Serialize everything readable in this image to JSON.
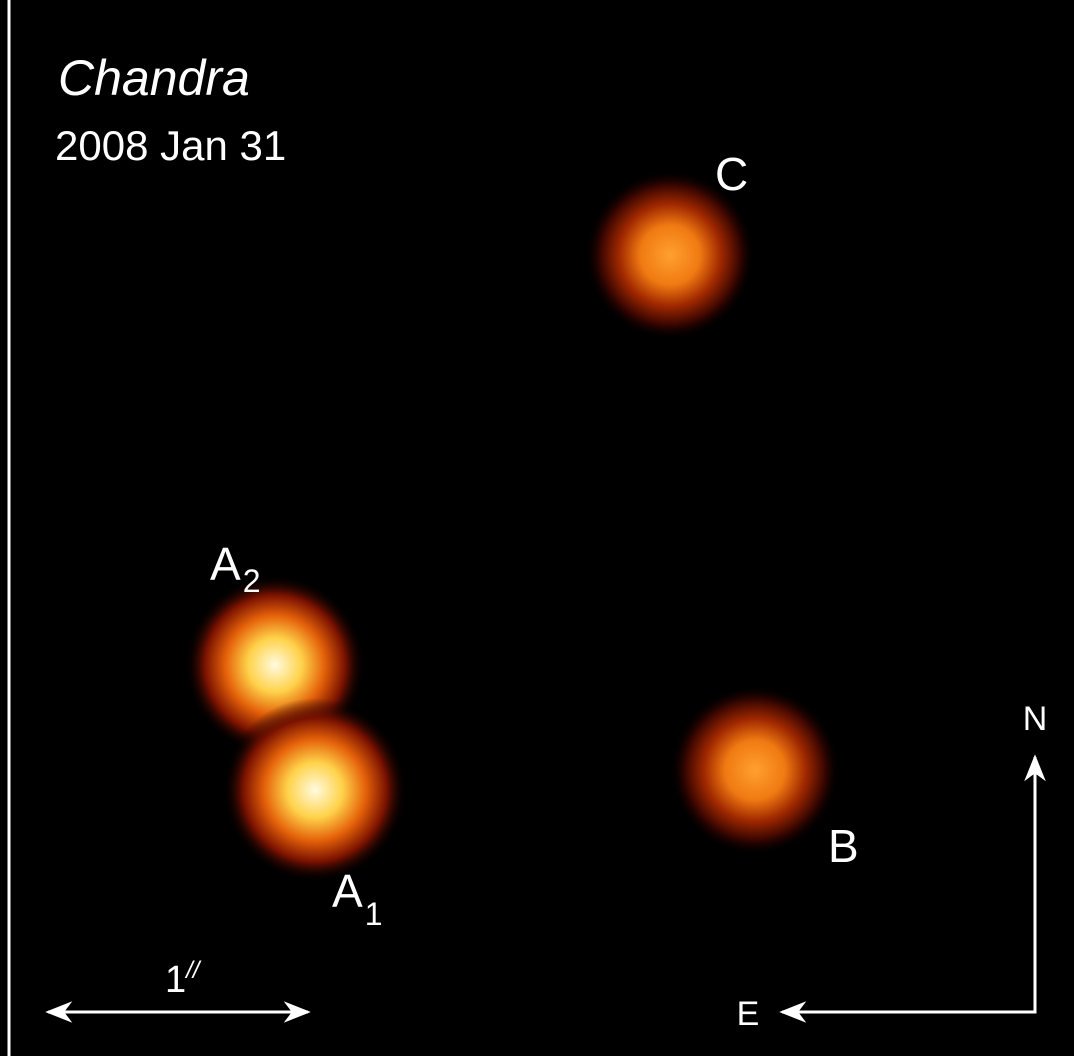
{
  "title": "Chandra",
  "date": "2008 Jan 31",
  "images": {
    "C": {
      "label": "C"
    },
    "A2": {
      "label": "A",
      "subscript": "2"
    },
    "A1": {
      "label": "A",
      "subscript": "1"
    },
    "B": {
      "label": "B"
    }
  },
  "scale_bar": {
    "label": "1",
    "superscript": "//"
  },
  "compass": {
    "north": "N",
    "east": "E"
  }
}
